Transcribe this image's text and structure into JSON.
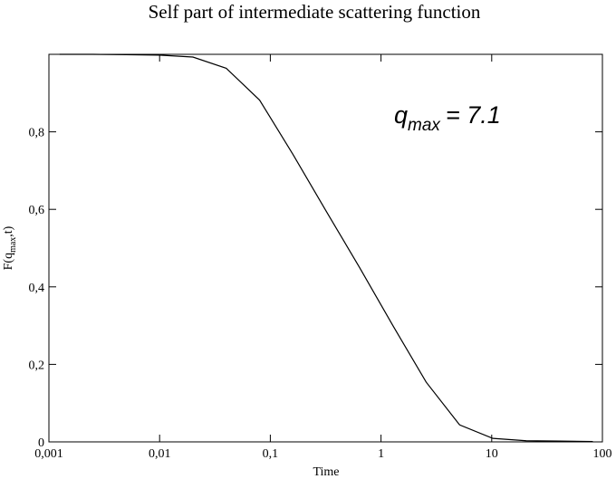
{
  "chart_data": {
    "type": "line",
    "title": "Self part of intermediate scattering function",
    "x_label": "Time",
    "y_label": {
      "main": "F(q",
      "subscript": "max",
      "tail": ",t)"
    },
    "annotation": {
      "symbol": "q",
      "subscript": "max",
      "text": "= 7.1"
    },
    "x": [
      0.00125,
      0.0025,
      0.005,
      0.01,
      0.02,
      0.04,
      0.08,
      0.16,
      0.32,
      0.64,
      1.28,
      2.56,
      5.12,
      10.24,
      20.48,
      40.96,
      81.92
    ],
    "series": [
      {
        "color": "#000000",
        "values": [
          1.0,
          1.0,
          0.999,
          0.998,
          0.993,
          0.964,
          0.882,
          0.742,
          0.595,
          0.45,
          0.3,
          0.154,
          0.044,
          0.009,
          0.003,
          0.002,
          0.001
        ]
      }
    ],
    "xscale": "log",
    "xlim": [
      0.001,
      100
    ],
    "xticks": [
      {
        "value": 0.001,
        "label": "0,001"
      },
      {
        "value": 0.01,
        "label": "0,01"
      },
      {
        "value": 0.1,
        "label": "0,1"
      },
      1,
      10,
      100
    ],
    "ylim": [
      0,
      1
    ],
    "yticks": [
      0,
      {
        "value": 0.2,
        "label": "0,2"
      },
      {
        "value": 0.4,
        "label": "0,4"
      },
      {
        "value": 0.6,
        "label": "0,6"
      },
      {
        "value": 0.8,
        "label": "0,8"
      }
    ],
    "grid": false
  }
}
